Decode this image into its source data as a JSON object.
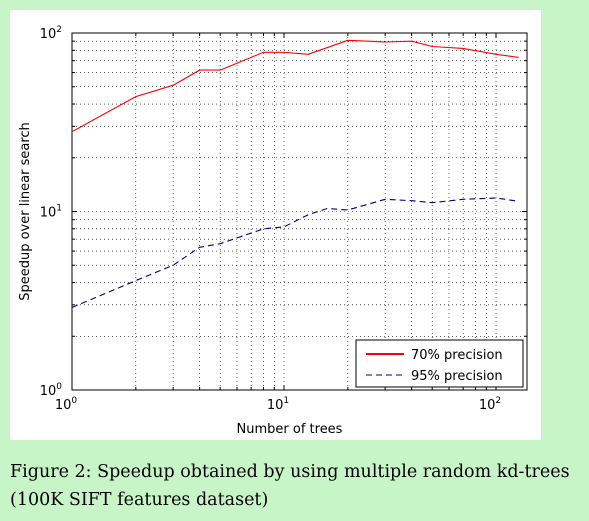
{
  "chart_data": {
    "type": "line",
    "title": "",
    "xlabel": "Number of trees",
    "ylabel": "Speedup over linear search",
    "xscale": "log",
    "yscale": "log",
    "xlim": [
      1,
      140
    ],
    "ylim": [
      1,
      100
    ],
    "grid": true,
    "legend_position": "bottom-right",
    "x_ticks": [
      {
        "value": 1,
        "base": "10",
        "exp": "0"
      },
      {
        "value": 10,
        "base": "10",
        "exp": "1"
      },
      {
        "value": 100,
        "base": "10",
        "exp": "2"
      }
    ],
    "y_ticks": [
      {
        "value": 1,
        "base": "10",
        "exp": "0"
      },
      {
        "value": 10,
        "base": "10",
        "exp": "1"
      },
      {
        "value": 100,
        "base": "10",
        "exp": "2"
      }
    ],
    "series": [
      {
        "name": "70% precision",
        "color": "#ff0000",
        "style": "solid",
        "points": [
          [
            1,
            28
          ],
          [
            2,
            44
          ],
          [
            3,
            51
          ],
          [
            4,
            62
          ],
          [
            5,
            62
          ],
          [
            8,
            78
          ],
          [
            10,
            78
          ],
          [
            13,
            76
          ],
          [
            20,
            91
          ],
          [
            30,
            89
          ],
          [
            40,
            90
          ],
          [
            50,
            84
          ],
          [
            70,
            82
          ],
          [
            100,
            76
          ],
          [
            128,
            73
          ]
        ]
      },
      {
        "name": "95% precision",
        "color": "#000080",
        "style": "dashed",
        "points": [
          [
            1,
            2.9
          ],
          [
            2,
            4.1
          ],
          [
            3,
            5.0
          ],
          [
            4,
            6.3
          ],
          [
            5,
            6.6
          ],
          [
            8,
            8.0
          ],
          [
            10,
            8.2
          ],
          [
            13,
            9.6
          ],
          [
            16,
            10.4
          ],
          [
            20,
            10.2
          ],
          [
            30,
            11.7
          ],
          [
            40,
            11.5
          ],
          [
            50,
            11.2
          ],
          [
            70,
            11.7
          ],
          [
            100,
            11.9
          ],
          [
            128,
            11.4
          ]
        ]
      }
    ]
  },
  "caption": "Figure 2: Speedup obtained by using multiple random kd-trees (100K SIFT features dataset)"
}
